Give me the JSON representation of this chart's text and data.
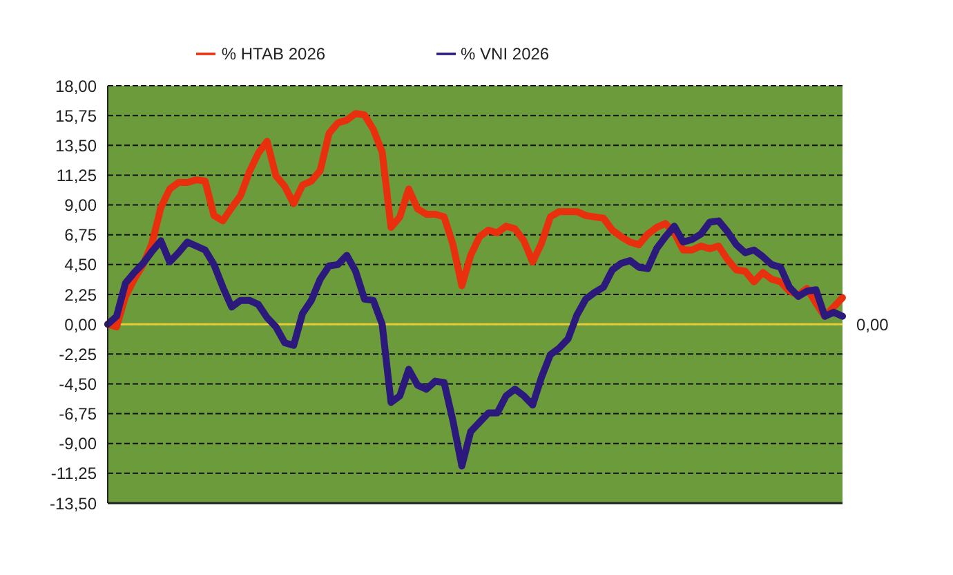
{
  "chart_data": {
    "type": "line",
    "ylim": [
      -13.5,
      18
    ],
    "tick_labels": "y",
    "categories": [
      null,
      null,
      null,
      null,
      null,
      null,
      null,
      null,
      null,
      null,
      null,
      null,
      null,
      null,
      null,
      null,
      null,
      null,
      null,
      null,
      null,
      null,
      null,
      null,
      null,
      null,
      null,
      null,
      null,
      null,
      null,
      null,
      null,
      null,
      null,
      null,
      null,
      null,
      null,
      null,
      null,
      null,
      null,
      null,
      null,
      null,
      null,
      null,
      null,
      null,
      null,
      null,
      null,
      null,
      null,
      null,
      null,
      null,
      null,
      null,
      null,
      null,
      null,
      null,
      null,
      null,
      null,
      null,
      null,
      null,
      null,
      null,
      null,
      null,
      null,
      null,
      null,
      null,
      null,
      null,
      null,
      null,
      null,
      null
    ],
    "yticks": [
      {
        "value": -13.5,
        "label": "-13,50"
      },
      {
        "value": -11.25,
        "label": "-11,25"
      },
      {
        "value": -9,
        "label": "-9,00"
      },
      {
        "value": -6.75,
        "label": "-6,75"
      },
      {
        "value": -4.5,
        "label": "-4,50"
      },
      {
        "value": -2.25,
        "label": "-2,25"
      },
      {
        "value": 0,
        "label": "0,00"
      },
      {
        "value": 2.25,
        "label": "2,25"
      },
      {
        "value": 4.5,
        "label": "4,50"
      },
      {
        "value": 6.75,
        "label": "6,75"
      },
      {
        "value": 9,
        "label": "9,00"
      },
      {
        "value": 11.25,
        "label": "11,25"
      },
      {
        "value": 13.5,
        "label": "13,50"
      },
      {
        "value": 15.75,
        "label": "15,75"
      },
      {
        "value": 18,
        "label": "18,00"
      }
    ],
    "grid": "y",
    "legend": "top",
    "marker": "none",
    "line_style": "solid",
    "ref_lines": [
      {
        "axis": "y",
        "value": 0,
        "label": "0,00",
        "color": "#e8cf3a"
      }
    ],
    "series": [
      {
        "name": "% HTAB 2026",
        "color": "#e8300f",
        "values": [
          0,
          -0.2,
          2.1,
          3.4,
          4.5,
          6.1,
          8.8,
          10.2,
          10.7,
          10.7,
          10.9,
          10.8,
          8.2,
          7.8,
          8.8,
          9.7,
          11.5,
          12.9,
          13.8,
          11.2,
          10.4,
          9.1,
          10.5,
          10.8,
          11.6,
          14.4,
          15.2,
          15.4,
          15.9,
          15.8,
          14.7,
          13.0,
          7.3,
          8.1,
          10.2,
          8.7,
          8.3,
          8.3,
          8.1,
          6.0,
          2.9,
          5.2,
          6.6,
          7.1,
          6.9,
          7.4,
          7.2,
          6.3,
          4.7,
          6.1,
          8.1,
          8.5,
          8.5,
          8.5,
          8.2,
          8.1,
          8.0,
          7.1,
          6.6,
          6.2,
          6.0,
          6.8,
          7.3,
          7.6,
          6.9,
          5.6,
          5.6,
          5.9,
          5.7,
          5.9,
          4.9,
          4.1,
          4.0,
          3.2,
          3.9,
          3.4,
          3.2,
          2.5,
          2.2,
          2.7,
          1.6,
          0.6,
          1.3,
          2.0
        ]
      },
      {
        "name": "% VNI 2026",
        "color": "#2b1a7c",
        "values": [
          0,
          0.6,
          3.1,
          3.9,
          4.6,
          5.5,
          6.3,
          4.7,
          5.4,
          6.2,
          5.9,
          5.6,
          4.5,
          2.8,
          1.3,
          1.8,
          1.8,
          1.5,
          0.5,
          -0.2,
          -1.4,
          -1.6,
          0.8,
          1.8,
          3.4,
          4.4,
          4.5,
          5.2,
          4.0,
          1.9,
          1.8,
          0.0,
          -5.9,
          -5.4,
          -3.4,
          -4.6,
          -4.9,
          -4.3,
          -4.4,
          -7.3,
          -10.7,
          -8.1,
          -7.4,
          -6.7,
          -6.7,
          -5.4,
          -4.9,
          -5.4,
          -6.1,
          -4.0,
          -2.3,
          -1.8,
          -1.1,
          0.7,
          1.9,
          2.4,
          2.8,
          4.1,
          4.6,
          4.8,
          4.3,
          4.2,
          5.7,
          6.6,
          7.4,
          6.2,
          6.4,
          6.8,
          7.7,
          7.8,
          7.0,
          6.0,
          5.4,
          5.6,
          5.1,
          4.5,
          4.3,
          2.8,
          2.1,
          2.5,
          2.6,
          0.6,
          0.9,
          0.6
        ]
      }
    ]
  }
}
